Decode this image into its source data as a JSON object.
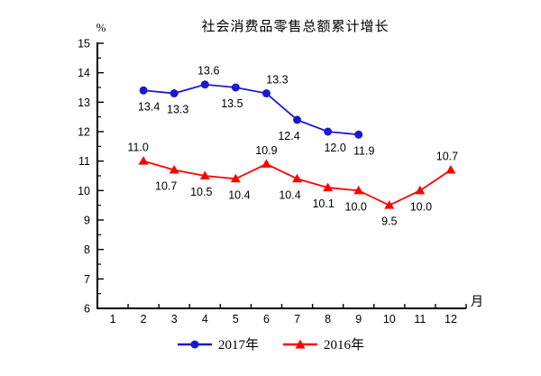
{
  "title": "社会消费品零售总额累计增长",
  "y_axis_unit": "%",
  "x_axis_unit": "月",
  "legend": {
    "items": [
      {
        "label": "2017年",
        "marker": "circle",
        "color": "#1a1acc"
      },
      {
        "label": "2016年",
        "marker": "triangle",
        "color": "#ff0000"
      }
    ]
  },
  "chart_data": {
    "type": "line",
    "title": "社会消费品零售总额累计增长",
    "xlabel": "月",
    "ylabel": "%",
    "categories": [
      "1",
      "2",
      "3",
      "4",
      "5",
      "6",
      "7",
      "8",
      "9",
      "10",
      "11",
      "12"
    ],
    "ylim": [
      6,
      15
    ],
    "y_major_step": 1,
    "y_minor_step": 0.5,
    "grid": false,
    "legend_position": "bottom",
    "axis_color": "#000000",
    "series": [
      {
        "name": "2017年",
        "color": "#1a1acc",
        "marker": "circle",
        "points": [
          {
            "x": 2,
            "y": 13.4,
            "label": "13.4",
            "label_pos": "below",
            "dx": 6
          },
          {
            "x": 3,
            "y": 13.3,
            "label": "13.3",
            "label_pos": "below",
            "dx": 4
          },
          {
            "x": 4,
            "y": 13.6,
            "label": "13.6",
            "label_pos": "above",
            "dx": 4
          },
          {
            "x": 5,
            "y": 13.5,
            "label": "13.5",
            "label_pos": "below",
            "dx": -4
          },
          {
            "x": 6,
            "y": 13.3,
            "label": "13.3",
            "label_pos": "above",
            "dx": 12
          },
          {
            "x": 7,
            "y": 12.4,
            "label": "12.4",
            "label_pos": "below",
            "dx": -9
          },
          {
            "x": 8,
            "y": 12.0,
            "label": "12.0",
            "label_pos": "below",
            "dx": 8
          },
          {
            "x": 9,
            "y": 11.9,
            "label": "11.9",
            "label_pos": "below",
            "dx": 6
          }
        ]
      },
      {
        "name": "2016年",
        "color": "#ff0000",
        "marker": "triangle",
        "points": [
          {
            "x": 2,
            "y": 11.0,
            "label": "11.0",
            "label_pos": "above",
            "dx": -6
          },
          {
            "x": 3,
            "y": 10.7,
            "label": "10.7",
            "label_pos": "below",
            "dx": -9
          },
          {
            "x": 4,
            "y": 10.5,
            "label": "10.5",
            "label_pos": "below",
            "dx": -4
          },
          {
            "x": 5,
            "y": 10.4,
            "label": "10.4",
            "label_pos": "below",
            "dx": 4
          },
          {
            "x": 6,
            "y": 10.9,
            "label": "10.9",
            "label_pos": "above",
            "dx": 0
          },
          {
            "x": 7,
            "y": 10.4,
            "label": "10.4",
            "label_pos": "below",
            "dx": -8
          },
          {
            "x": 8,
            "y": 10.1,
            "label": "10.1",
            "label_pos": "below",
            "dx": -5
          },
          {
            "x": 9,
            "y": 10.0,
            "label": "10.0",
            "label_pos": "below",
            "dx": -3
          },
          {
            "x": 10,
            "y": 9.5,
            "label": "9.5",
            "label_pos": "below",
            "dx": 0
          },
          {
            "x": 11,
            "y": 10.0,
            "label": "10.0",
            "label_pos": "below",
            "dx": 1
          },
          {
            "x": 12,
            "y": 10.7,
            "label": "10.7",
            "label_pos": "above",
            "dx": -4
          }
        ]
      }
    ]
  }
}
